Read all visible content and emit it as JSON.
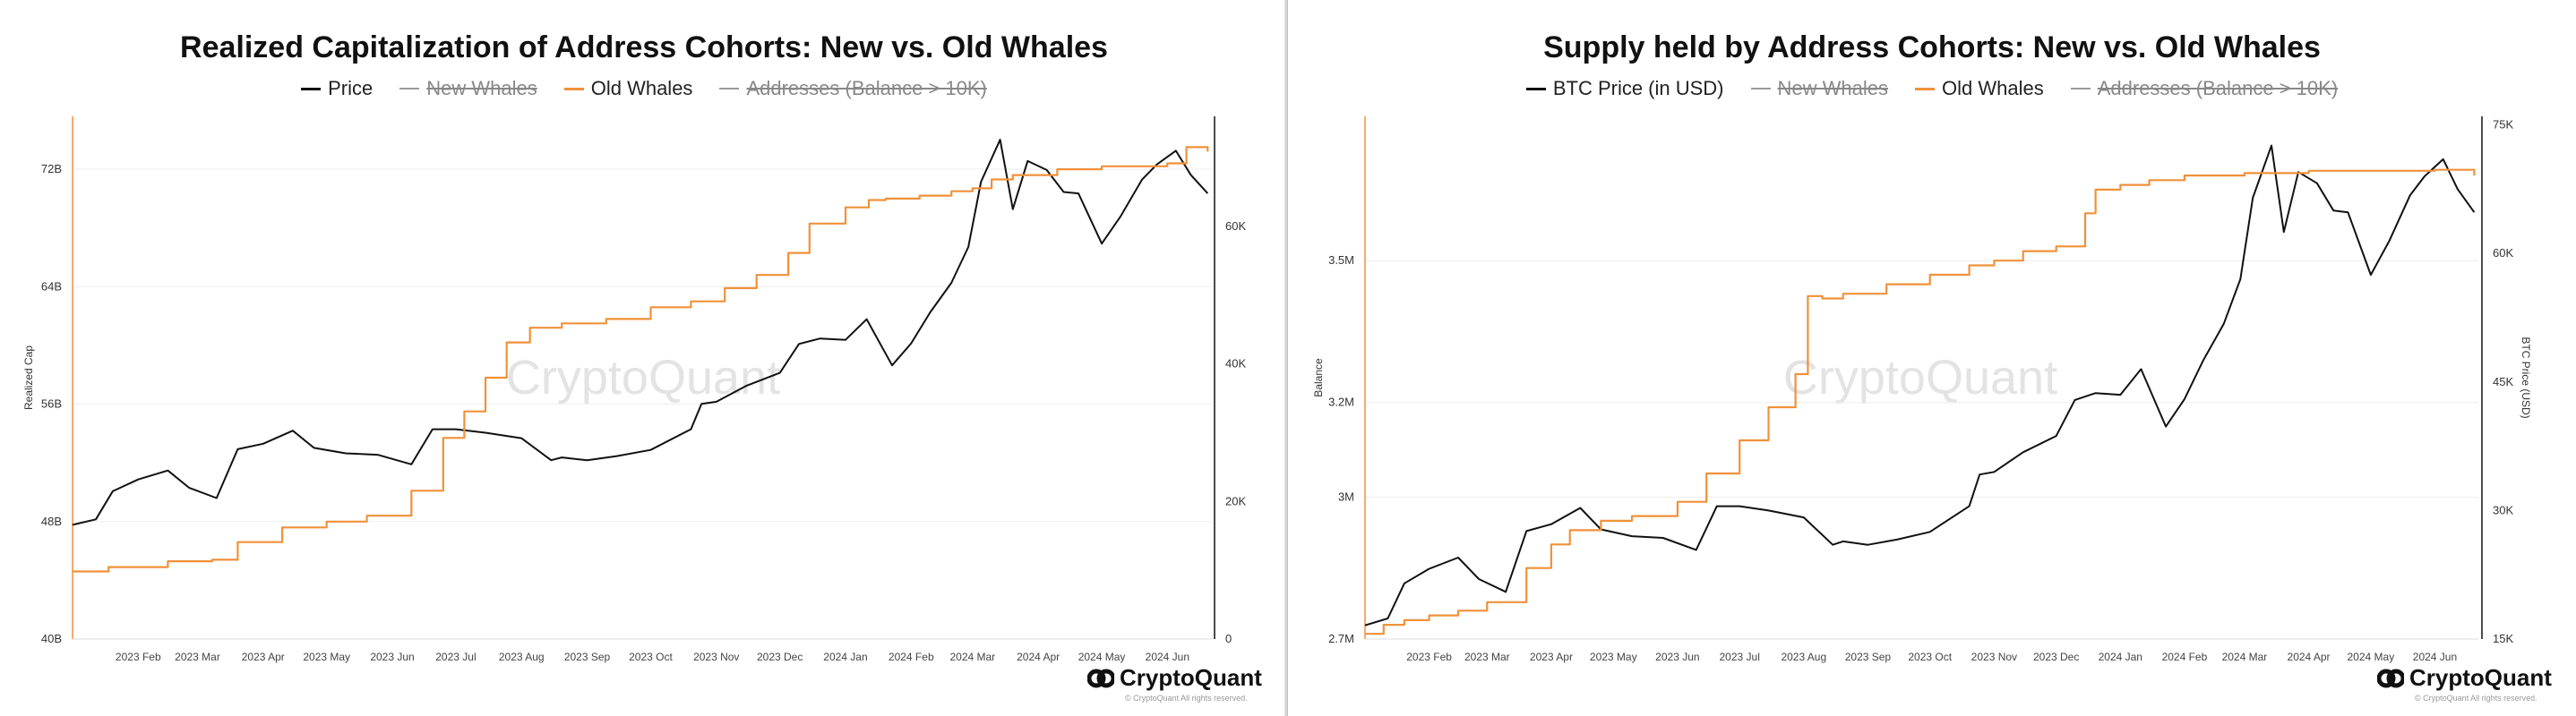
{
  "chart_data": [
    {
      "type": "line",
      "title": "Realized Capitalization of Address Cohorts: New vs. Old Whales",
      "legend": [
        {
          "label": "Price",
          "color": "#111111",
          "hidden": false
        },
        {
          "label": "New Whales",
          "color": "#9a9a9a",
          "hidden": true
        },
        {
          "label": "Old Whales",
          "color": "#f0913a",
          "hidden": false
        },
        {
          "label": "Addresses (Balance > 10K)",
          "color": "#9a9a9a",
          "hidden": true
        }
      ],
      "ylabel_left": "Realized Cap",
      "ylabel_right": "",
      "ylim_left": [
        40,
        75.6
      ],
      "ylim_right": [
        0,
        76000
      ],
      "y_ticks_left": [
        {
          "value": 40,
          "label": "40B"
        },
        {
          "value": 48,
          "label": "48B"
        },
        {
          "value": 56,
          "label": "56B"
        },
        {
          "value": 64,
          "label": "64B"
        },
        {
          "value": 72,
          "label": "72B"
        }
      ],
      "y_ticks_right": [
        {
          "value": 0,
          "label": "0"
        },
        {
          "value": 20000,
          "label": "20K"
        },
        {
          "value": 40000,
          "label": "40K"
        },
        {
          "value": 60000,
          "label": "60K"
        }
      ],
      "x_range": [
        "2023-01-01",
        "2024-06-22"
      ],
      "x_ticks": [
        {
          "date": "2023-02-01",
          "label": "2023 Feb"
        },
        {
          "date": "2023-03-01",
          "label": "2023 Mar"
        },
        {
          "date": "2023-04-01",
          "label": "2023 Apr"
        },
        {
          "date": "2023-05-01",
          "label": "2023 May"
        },
        {
          "date": "2023-06-01",
          "label": "2023 Jun"
        },
        {
          "date": "2023-07-01",
          "label": "2023 Jul"
        },
        {
          "date": "2023-08-01",
          "label": "2023 Aug"
        },
        {
          "date": "2023-09-01",
          "label": "2023 Sep"
        },
        {
          "date": "2023-10-01",
          "label": "2023 Oct"
        },
        {
          "date": "2023-11-01",
          "label": "2023 Nov"
        },
        {
          "date": "2023-12-01",
          "label": "2023 Dec"
        },
        {
          "date": "2024-01-01",
          "label": "2024 Jan"
        },
        {
          "date": "2024-02-01",
          "label": "2024 Feb"
        },
        {
          "date": "2024-03-01",
          "label": "2024 Mar"
        },
        {
          "date": "2024-04-01",
          "label": "2024 Apr"
        },
        {
          "date": "2024-05-01",
          "label": "2024 May"
        },
        {
          "date": "2024-06-01",
          "label": "2024 Jun"
        }
      ],
      "grid": true,
      "watermark": "CryptoQuant",
      "series": [
        {
          "name": "Price",
          "axis": "right",
          "color": "#111111",
          "x": [
            "2023-01-01",
            "2023-01-12",
            "2023-01-20",
            "2023-02-01",
            "2023-02-15",
            "2023-02-25",
            "2023-03-10",
            "2023-03-20",
            "2023-04-01",
            "2023-04-15",
            "2023-04-25",
            "2023-05-10",
            "2023-05-25",
            "2023-06-10",
            "2023-06-20",
            "2023-07-01",
            "2023-07-15",
            "2023-08-01",
            "2023-08-15",
            "2023-08-20",
            "2023-09-01",
            "2023-09-15",
            "2023-10-01",
            "2023-10-20",
            "2023-10-25",
            "2023-11-01",
            "2023-11-15",
            "2023-12-01",
            "2023-12-10",
            "2023-12-20",
            "2024-01-01",
            "2024-01-11",
            "2024-01-23",
            "2024-02-01",
            "2024-02-10",
            "2024-02-20",
            "2024-02-28",
            "2024-03-05",
            "2024-03-14",
            "2024-03-20",
            "2024-03-27",
            "2024-04-05",
            "2024-04-13",
            "2024-04-20",
            "2024-05-01",
            "2024-05-10",
            "2024-05-20",
            "2024-05-27",
            "2024-06-05",
            "2024-06-12",
            "2024-06-20"
          ],
          "values": [
            16600,
            17400,
            21500,
            23200,
            24500,
            22000,
            20500,
            27600,
            28400,
            30300,
            27800,
            27000,
            26800,
            25400,
            30500,
            30500,
            30000,
            29200,
            26000,
            26400,
            26000,
            26600,
            27500,
            30500,
            34200,
            34500,
            36800,
            38700,
            42900,
            43700,
            43500,
            46500,
            39800,
            43000,
            47500,
            51800,
            57000,
            66500,
            72600,
            62500,
            69500,
            68200,
            65000,
            64800,
            57500,
            61500,
            66800,
            69000,
            71000,
            67500,
            64800
          ]
        },
        {
          "name": "Old Whales",
          "axis": "left",
          "color": "#f0913a",
          "x": [
            "2023-01-01",
            "2023-01-10",
            "2023-01-18",
            "2023-02-15",
            "2023-03-08",
            "2023-03-20",
            "2023-04-10",
            "2023-05-01",
            "2023-05-20",
            "2023-06-10",
            "2023-06-25",
            "2023-07-05",
            "2023-07-15",
            "2023-07-25",
            "2023-08-05",
            "2023-08-20",
            "2023-09-10",
            "2023-10-01",
            "2023-10-20",
            "2023-11-05",
            "2023-11-20",
            "2023-12-05",
            "2023-12-15",
            "2024-01-01",
            "2024-01-12",
            "2024-01-20",
            "2024-02-05",
            "2024-02-20",
            "2024-03-01",
            "2024-03-10",
            "2024-03-20",
            "2024-04-10",
            "2024-05-01",
            "2024-06-01",
            "2024-06-10",
            "2024-06-20"
          ],
          "values": [
            44.6,
            44.6,
            44.9,
            45.3,
            45.4,
            46.6,
            47.6,
            48.0,
            48.4,
            50.1,
            53.7,
            55.5,
            57.8,
            60.2,
            61.2,
            61.5,
            61.8,
            62.6,
            63.0,
            63.9,
            64.8,
            66.3,
            68.3,
            69.4,
            69.9,
            70.0,
            70.2,
            70.5,
            70.7,
            71.3,
            71.6,
            72.0,
            72.2,
            72.4,
            73.5,
            73.2
          ]
        }
      ]
    },
    {
      "type": "line",
      "title": "Supply held by Address Cohorts: New vs. Old Whales",
      "legend": [
        {
          "label": "BTC Price (in USD)",
          "color": "#111111",
          "hidden": false
        },
        {
          "label": "New Whales",
          "color": "#9a9a9a",
          "hidden": true
        },
        {
          "label": "Old Whales",
          "color": "#f0913a",
          "hidden": false
        },
        {
          "label": "Addresses (Balance > 10K)",
          "color": "#9a9a9a",
          "hidden": true
        }
      ],
      "ylabel_left": "Balance",
      "ylabel_right": "BTC Price (USD)",
      "ylim_left": [
        2.7,
        3.805
      ],
      "ylim_right": [
        15000,
        76000
      ],
      "y_ticks_left": [
        {
          "value": 2.7,
          "label": "2.7M"
        },
        {
          "value": 3.0,
          "label": "3M"
        },
        {
          "value": 3.2,
          "label": "3.2M"
        },
        {
          "value": 3.5,
          "label": "3.5M"
        }
      ],
      "y_ticks_right": [
        {
          "value": 15000,
          "label": "15K"
        },
        {
          "value": 30000,
          "label": "30K"
        },
        {
          "value": 45000,
          "label": "45K"
        },
        {
          "value": 60000,
          "label": "60K"
        },
        {
          "value": 75000,
          "label": "75K"
        }
      ],
      "x_range": [
        "2023-01-01",
        "2024-06-22"
      ],
      "x_ticks": [
        {
          "date": "2023-02-01",
          "label": "2023 Feb"
        },
        {
          "date": "2023-03-01",
          "label": "2023 Mar"
        },
        {
          "date": "2023-04-01",
          "label": "2023 Apr"
        },
        {
          "date": "2023-05-01",
          "label": "2023 May"
        },
        {
          "date": "2023-06-01",
          "label": "2023 Jun"
        },
        {
          "date": "2023-07-01",
          "label": "2023 Jul"
        },
        {
          "date": "2023-08-01",
          "label": "2023 Aug"
        },
        {
          "date": "2023-09-01",
          "label": "2023 Sep"
        },
        {
          "date": "2023-10-01",
          "label": "2023 Oct"
        },
        {
          "date": "2023-11-01",
          "label": "2023 Nov"
        },
        {
          "date": "2023-12-01",
          "label": "2023 Dec"
        },
        {
          "date": "2024-01-01",
          "label": "2024 Jan"
        },
        {
          "date": "2024-02-01",
          "label": "2024 Feb"
        },
        {
          "date": "2024-03-01",
          "label": "2024 Mar"
        },
        {
          "date": "2024-04-01",
          "label": "2024 Apr"
        },
        {
          "date": "2024-05-01",
          "label": "2024 May"
        },
        {
          "date": "2024-06-01",
          "label": "2024 Jun"
        }
      ],
      "grid": true,
      "watermark": "CryptoQuant",
      "series": [
        {
          "name": "BTC Price (in USD)",
          "axis": "right",
          "color": "#111111",
          "x": [
            "2023-01-01",
            "2023-01-12",
            "2023-01-20",
            "2023-02-01",
            "2023-02-15",
            "2023-02-25",
            "2023-03-10",
            "2023-03-20",
            "2023-04-01",
            "2023-04-15",
            "2023-04-25",
            "2023-05-10",
            "2023-05-25",
            "2023-06-10",
            "2023-06-20",
            "2023-07-01",
            "2023-07-15",
            "2023-08-01",
            "2023-08-15",
            "2023-08-20",
            "2023-09-01",
            "2023-09-15",
            "2023-10-01",
            "2023-10-20",
            "2023-10-25",
            "2023-11-01",
            "2023-11-15",
            "2023-12-01",
            "2023-12-10",
            "2023-12-20",
            "2024-01-01",
            "2024-01-11",
            "2024-01-23",
            "2024-02-01",
            "2024-02-10",
            "2024-02-20",
            "2024-02-28",
            "2024-03-05",
            "2024-03-14",
            "2024-03-20",
            "2024-03-27",
            "2024-04-05",
            "2024-04-13",
            "2024-04-20",
            "2024-05-01",
            "2024-05-10",
            "2024-05-20",
            "2024-05-27",
            "2024-06-05",
            "2024-06-12",
            "2024-06-20"
          ],
          "values": [
            16600,
            17400,
            21500,
            23200,
            24500,
            22000,
            20500,
            27600,
            28400,
            30300,
            27800,
            27000,
            26800,
            25400,
            30500,
            30500,
            30000,
            29200,
            26000,
            26400,
            26000,
            26600,
            27500,
            30500,
            34200,
            34500,
            36800,
            38700,
            42900,
            43700,
            43500,
            46500,
            39800,
            43000,
            47500,
            51800,
            57000,
            66500,
            72600,
            62500,
            69500,
            68200,
            65000,
            64800,
            57500,
            61500,
            66800,
            69000,
            71000,
            67500,
            64800
          ]
        },
        {
          "name": "Old Whales",
          "axis": "left",
          "color": "#f0913a",
          "x": [
            "2023-01-01",
            "2023-01-10",
            "2023-01-20",
            "2023-02-01",
            "2023-02-15",
            "2023-03-01",
            "2023-03-20",
            "2023-04-01",
            "2023-04-10",
            "2023-04-25",
            "2023-05-10",
            "2023-06-01",
            "2023-06-15",
            "2023-07-01",
            "2023-07-15",
            "2023-07-28",
            "2023-08-03",
            "2023-08-10",
            "2023-08-20",
            "2023-09-10",
            "2023-10-01",
            "2023-10-20",
            "2023-11-01",
            "2023-11-15",
            "2023-12-01",
            "2023-12-15",
            "2023-12-20",
            "2024-01-01",
            "2024-01-15",
            "2024-02-01",
            "2024-03-01",
            "2024-04-01",
            "2024-05-01",
            "2024-06-01",
            "2024-06-20"
          ],
          "values": [
            2.711,
            2.73,
            2.74,
            2.75,
            2.76,
            2.778,
            2.85,
            2.9,
            2.93,
            2.95,
            2.96,
            2.99,
            3.05,
            3.12,
            3.19,
            3.26,
            3.425,
            3.42,
            3.43,
            3.45,
            3.47,
            3.49,
            3.5,
            3.52,
            3.53,
            3.6,
            3.65,
            3.66,
            3.67,
            3.68,
            3.685,
            3.69,
            3.69,
            3.692,
            3.68
          ]
        }
      ]
    }
  ],
  "brand": {
    "name": "CryptoQuant",
    "copyright": "© CryptoQuant All rights reserved."
  }
}
